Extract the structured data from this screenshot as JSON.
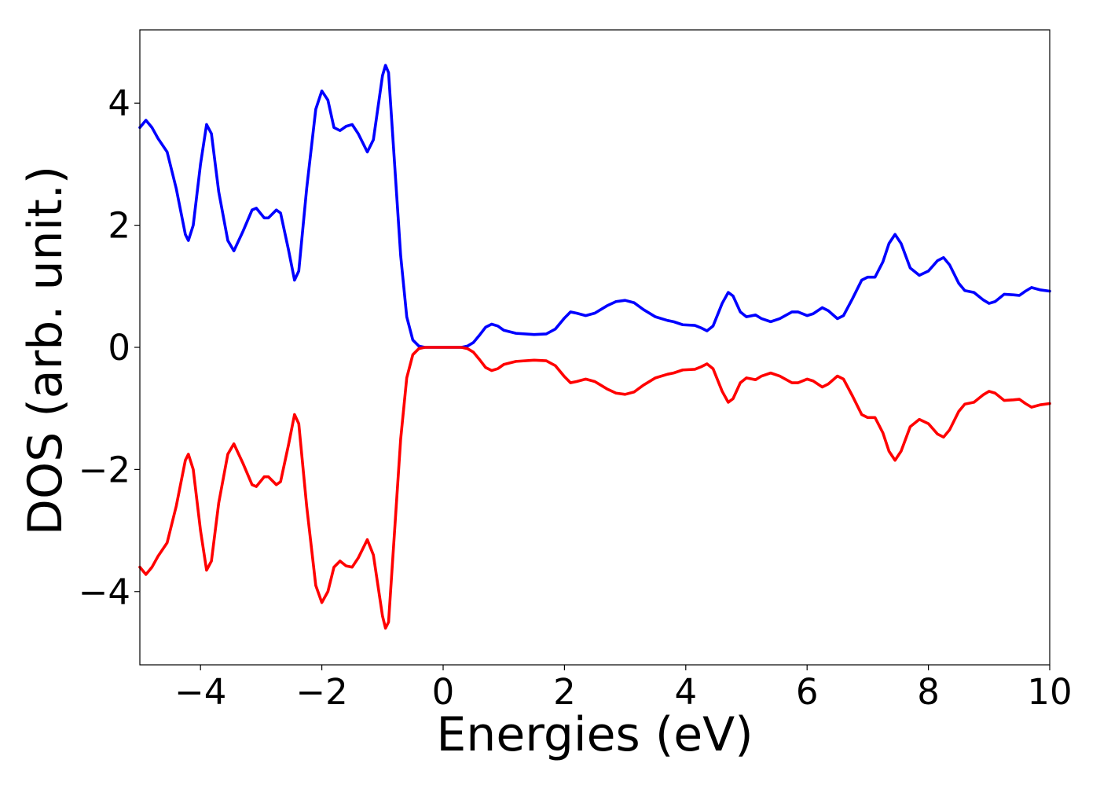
{
  "chart_data": {
    "type": "line",
    "title": "",
    "xlabel": "Energies (eV)",
    "ylabel": "DOS (arb. unit.)",
    "xlim": [
      -5,
      10
    ],
    "ylim": [
      -5.2,
      5.2
    ],
    "grid": false,
    "legend": "none",
    "x_ticks": [
      -4,
      -2,
      0,
      2,
      4,
      6,
      8,
      10
    ],
    "x_tick_labels": [
      "−4",
      "−2",
      "0",
      "2",
      "4",
      "6",
      "8",
      "10"
    ],
    "y_ticks": [
      4,
      2,
      0,
      -2,
      -4
    ],
    "y_tick_labels": [
      "4",
      "2",
      "0",
      "−2",
      "−4"
    ],
    "series": [
      {
        "color": "#0000ff",
        "points": [
          [
            -5.0,
            3.6
          ],
          [
            -4.9,
            3.72
          ],
          [
            -4.8,
            3.6
          ],
          [
            -4.7,
            3.42
          ],
          [
            -4.55,
            3.2
          ],
          [
            -4.4,
            2.6
          ],
          [
            -4.25,
            1.85
          ],
          [
            -4.2,
            1.75
          ],
          [
            -4.12,
            2.0
          ],
          [
            -4.0,
            3.0
          ],
          [
            -3.9,
            3.65
          ],
          [
            -3.82,
            3.5
          ],
          [
            -3.7,
            2.55
          ],
          [
            -3.55,
            1.75
          ],
          [
            -3.45,
            1.58
          ],
          [
            -3.3,
            1.9
          ],
          [
            -3.15,
            2.25
          ],
          [
            -3.08,
            2.28
          ],
          [
            -2.95,
            2.12
          ],
          [
            -2.88,
            2.12
          ],
          [
            -2.75,
            2.25
          ],
          [
            -2.68,
            2.2
          ],
          [
            -2.55,
            1.6
          ],
          [
            -2.45,
            1.1
          ],
          [
            -2.38,
            1.25
          ],
          [
            -2.25,
            2.6
          ],
          [
            -2.1,
            3.9
          ],
          [
            -2.0,
            4.2
          ],
          [
            -1.9,
            4.05
          ],
          [
            -1.8,
            3.6
          ],
          [
            -1.7,
            3.55
          ],
          [
            -1.6,
            3.62
          ],
          [
            -1.5,
            3.65
          ],
          [
            -1.4,
            3.5
          ],
          [
            -1.25,
            3.2
          ],
          [
            -1.15,
            3.4
          ],
          [
            -1.0,
            4.45
          ],
          [
            -0.95,
            4.62
          ],
          [
            -0.9,
            4.5
          ],
          [
            -0.8,
            3.0
          ],
          [
            -0.7,
            1.5
          ],
          [
            -0.6,
            0.5
          ],
          [
            -0.5,
            0.12
          ],
          [
            -0.4,
            0.02
          ],
          [
            -0.3,
            0.0
          ],
          [
            0.0,
            0.0
          ],
          [
            0.3,
            0.0
          ],
          [
            0.4,
            0.02
          ],
          [
            0.5,
            0.08
          ],
          [
            0.6,
            0.2
          ],
          [
            0.7,
            0.33
          ],
          [
            0.8,
            0.38
          ],
          [
            0.9,
            0.35
          ],
          [
            1.0,
            0.28
          ],
          [
            1.2,
            0.23
          ],
          [
            1.5,
            0.21
          ],
          [
            1.7,
            0.22
          ],
          [
            1.85,
            0.3
          ],
          [
            2.0,
            0.48
          ],
          [
            2.1,
            0.58
          ],
          [
            2.2,
            0.56
          ],
          [
            2.35,
            0.52
          ],
          [
            2.5,
            0.56
          ],
          [
            2.7,
            0.68
          ],
          [
            2.85,
            0.75
          ],
          [
            3.0,
            0.77
          ],
          [
            3.15,
            0.73
          ],
          [
            3.3,
            0.62
          ],
          [
            3.5,
            0.5
          ],
          [
            3.7,
            0.44
          ],
          [
            3.8,
            0.42
          ],
          [
            3.95,
            0.37
          ],
          [
            4.15,
            0.36
          ],
          [
            4.25,
            0.32
          ],
          [
            4.35,
            0.27
          ],
          [
            4.45,
            0.35
          ],
          [
            4.6,
            0.72
          ],
          [
            4.7,
            0.9
          ],
          [
            4.78,
            0.84
          ],
          [
            4.9,
            0.58
          ],
          [
            5.0,
            0.5
          ],
          [
            5.15,
            0.53
          ],
          [
            5.25,
            0.47
          ],
          [
            5.4,
            0.42
          ],
          [
            5.55,
            0.47
          ],
          [
            5.75,
            0.58
          ],
          [
            5.85,
            0.58
          ],
          [
            6.0,
            0.52
          ],
          [
            6.1,
            0.55
          ],
          [
            6.25,
            0.65
          ],
          [
            6.35,
            0.6
          ],
          [
            6.5,
            0.47
          ],
          [
            6.6,
            0.52
          ],
          [
            6.75,
            0.8
          ],
          [
            6.9,
            1.1
          ],
          [
            7.0,
            1.15
          ],
          [
            7.12,
            1.15
          ],
          [
            7.25,
            1.4
          ],
          [
            7.35,
            1.7
          ],
          [
            7.45,
            1.85
          ],
          [
            7.55,
            1.7
          ],
          [
            7.7,
            1.3
          ],
          [
            7.85,
            1.18
          ],
          [
            8.0,
            1.25
          ],
          [
            8.15,
            1.42
          ],
          [
            8.25,
            1.47
          ],
          [
            8.35,
            1.35
          ],
          [
            8.5,
            1.05
          ],
          [
            8.6,
            0.93
          ],
          [
            8.75,
            0.9
          ],
          [
            8.9,
            0.78
          ],
          [
            9.0,
            0.72
          ],
          [
            9.1,
            0.75
          ],
          [
            9.25,
            0.87
          ],
          [
            9.4,
            0.86
          ],
          [
            9.5,
            0.85
          ],
          [
            9.6,
            0.92
          ],
          [
            9.7,
            0.98
          ],
          [
            9.85,
            0.94
          ],
          [
            10.0,
            0.92
          ]
        ]
      },
      {
        "color": "#ff0000",
        "points": [
          [
            -5.0,
            -3.6
          ],
          [
            -4.9,
            -3.72
          ],
          [
            -4.8,
            -3.6
          ],
          [
            -4.7,
            -3.42
          ],
          [
            -4.55,
            -3.2
          ],
          [
            -4.4,
            -2.6
          ],
          [
            -4.25,
            -1.85
          ],
          [
            -4.2,
            -1.75
          ],
          [
            -4.12,
            -2.0
          ],
          [
            -4.0,
            -3.0
          ],
          [
            -3.9,
            -3.65
          ],
          [
            -3.82,
            -3.5
          ],
          [
            -3.7,
            -2.55
          ],
          [
            -3.55,
            -1.75
          ],
          [
            -3.45,
            -1.58
          ],
          [
            -3.3,
            -1.9
          ],
          [
            -3.15,
            -2.25
          ],
          [
            -3.08,
            -2.28
          ],
          [
            -2.95,
            -2.12
          ],
          [
            -2.88,
            -2.12
          ],
          [
            -2.75,
            -2.25
          ],
          [
            -2.68,
            -2.2
          ],
          [
            -2.55,
            -1.6
          ],
          [
            -2.45,
            -1.1
          ],
          [
            -2.38,
            -1.25
          ],
          [
            -2.25,
            -2.6
          ],
          [
            -2.1,
            -3.9
          ],
          [
            -2.0,
            -4.18
          ],
          [
            -1.9,
            -4.0
          ],
          [
            -1.8,
            -3.6
          ],
          [
            -1.7,
            -3.5
          ],
          [
            -1.6,
            -3.58
          ],
          [
            -1.5,
            -3.6
          ],
          [
            -1.4,
            -3.45
          ],
          [
            -1.25,
            -3.15
          ],
          [
            -1.15,
            -3.4
          ],
          [
            -1.0,
            -4.4
          ],
          [
            -0.95,
            -4.6
          ],
          [
            -0.9,
            -4.5
          ],
          [
            -0.8,
            -3.0
          ],
          [
            -0.7,
            -1.5
          ],
          [
            -0.6,
            -0.5
          ],
          [
            -0.5,
            -0.12
          ],
          [
            -0.4,
            -0.02
          ],
          [
            -0.3,
            0.0
          ],
          [
            0.0,
            0.0
          ],
          [
            0.3,
            0.0
          ],
          [
            0.4,
            -0.02
          ],
          [
            0.5,
            -0.08
          ],
          [
            0.6,
            -0.2
          ],
          [
            0.7,
            -0.33
          ],
          [
            0.8,
            -0.38
          ],
          [
            0.9,
            -0.35
          ],
          [
            1.0,
            -0.28
          ],
          [
            1.2,
            -0.23
          ],
          [
            1.5,
            -0.21
          ],
          [
            1.7,
            -0.22
          ],
          [
            1.85,
            -0.3
          ],
          [
            2.0,
            -0.48
          ],
          [
            2.1,
            -0.58
          ],
          [
            2.2,
            -0.56
          ],
          [
            2.35,
            -0.52
          ],
          [
            2.5,
            -0.56
          ],
          [
            2.7,
            -0.68
          ],
          [
            2.85,
            -0.75
          ],
          [
            3.0,
            -0.77
          ],
          [
            3.15,
            -0.73
          ],
          [
            3.3,
            -0.62
          ],
          [
            3.5,
            -0.5
          ],
          [
            3.7,
            -0.44
          ],
          [
            3.8,
            -0.42
          ],
          [
            3.95,
            -0.37
          ],
          [
            4.15,
            -0.36
          ],
          [
            4.25,
            -0.32
          ],
          [
            4.35,
            -0.27
          ],
          [
            4.45,
            -0.35
          ],
          [
            4.6,
            -0.72
          ],
          [
            4.7,
            -0.9
          ],
          [
            4.78,
            -0.84
          ],
          [
            4.9,
            -0.58
          ],
          [
            5.0,
            -0.5
          ],
          [
            5.15,
            -0.53
          ],
          [
            5.25,
            -0.47
          ],
          [
            5.4,
            -0.42
          ],
          [
            5.55,
            -0.47
          ],
          [
            5.75,
            -0.58
          ],
          [
            5.85,
            -0.58
          ],
          [
            6.0,
            -0.52
          ],
          [
            6.1,
            -0.55
          ],
          [
            6.25,
            -0.65
          ],
          [
            6.35,
            -0.6
          ],
          [
            6.5,
            -0.47
          ],
          [
            6.6,
            -0.52
          ],
          [
            6.75,
            -0.8
          ],
          [
            6.9,
            -1.1
          ],
          [
            7.0,
            -1.15
          ],
          [
            7.12,
            -1.15
          ],
          [
            7.25,
            -1.4
          ],
          [
            7.35,
            -1.7
          ],
          [
            7.45,
            -1.85
          ],
          [
            7.55,
            -1.7
          ],
          [
            7.7,
            -1.3
          ],
          [
            7.85,
            -1.18
          ],
          [
            8.0,
            -1.25
          ],
          [
            8.15,
            -1.42
          ],
          [
            8.25,
            -1.47
          ],
          [
            8.35,
            -1.35
          ],
          [
            8.5,
            -1.05
          ],
          [
            8.6,
            -0.93
          ],
          [
            8.75,
            -0.9
          ],
          [
            8.9,
            -0.78
          ],
          [
            9.0,
            -0.72
          ],
          [
            9.1,
            -0.75
          ],
          [
            9.25,
            -0.87
          ],
          [
            9.4,
            -0.86
          ],
          [
            9.5,
            -0.85
          ],
          [
            9.6,
            -0.92
          ],
          [
            9.7,
            -0.98
          ],
          [
            9.85,
            -0.94
          ],
          [
            10.0,
            -0.92
          ]
        ]
      }
    ]
  }
}
